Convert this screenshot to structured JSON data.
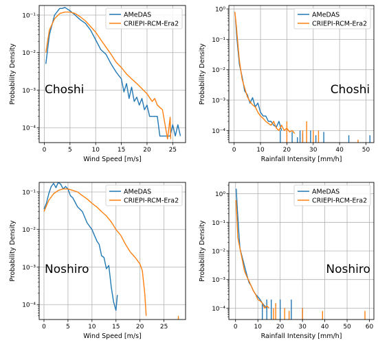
{
  "colors": {
    "amedas": "#1f77b4",
    "criepi": "#ff7f0e",
    "grid": "#b0b0b0"
  },
  "chart_data": [
    {
      "type": "line",
      "scale": "log-y",
      "annotation": "Choshi",
      "xlabel": "Wind Speed [m/s]",
      "ylabel": "Probability Density",
      "xlim": [
        -1,
        27.5
      ],
      "ylim": [
        4e-05,
        0.18
      ],
      "xticks": [
        0,
        5,
        10,
        15,
        20,
        25
      ],
      "yticks": [
        0.0001,
        0.001,
        0.01,
        0.1
      ],
      "ytick_labels": [
        "10⁻⁴",
        "10⁻³",
        "10⁻²",
        "10⁻¹"
      ],
      "grid": true,
      "legend_position": "top-right",
      "series": [
        {
          "name": "AMeDAS",
          "color": "#1f77b4",
          "x": [
            0.3,
            1,
            2,
            3,
            3.5,
            4,
            5,
            6,
            7,
            8,
            9,
            10,
            11,
            12,
            13,
            14,
            15,
            15.5,
            16,
            16.5,
            17,
            17.5,
            18,
            18.5,
            19,
            19.5,
            20,
            20.5,
            21,
            21.5,
            22,
            22.5,
            23,
            23.5,
            24,
            24.5,
            25,
            25.5,
            26,
            26.5
          ],
          "y": [
            0.005,
            0.03,
            0.1,
            0.15,
            0.15,
            0.16,
            0.13,
            0.1,
            0.075,
            0.06,
            0.04,
            0.022,
            0.012,
            0.009,
            0.005,
            0.003,
            0.002,
            0.0009,
            0.0015,
            0.0006,
            0.0012,
            0.0005,
            0.00065,
            0.0004,
            0.0006,
            0.0003,
            0.0004,
            0.0002,
            0.0002,
            0.0002,
            0.0002,
            6e-05,
            6e-05,
            6e-05,
            6e-05,
            6e-05,
            0.00012,
            6e-05,
            0.00012,
            6e-05
          ]
        },
        {
          "name": "CRIEPI-RCM-Era2",
          "color": "#ff7f0e",
          "x": [
            0.3,
            1,
            2,
            3,
            4,
            5,
            6,
            7,
            8,
            9,
            10,
            11,
            12,
            13,
            14,
            15,
            16,
            17,
            18,
            19,
            20,
            21,
            21.5,
            22,
            23,
            24,
            24.5,
            24.6
          ],
          "y": [
            0.01,
            0.04,
            0.08,
            0.11,
            0.12,
            0.12,
            0.11,
            0.09,
            0.07,
            0.05,
            0.035,
            0.022,
            0.014,
            0.009,
            0.0055,
            0.004,
            0.0027,
            0.002,
            0.0015,
            0.0011,
            0.0008,
            0.0005,
            0.0006,
            0.0004,
            0.0003,
            5e-05,
            0.00019,
            5e-05
          ]
        }
      ]
    },
    {
      "type": "line",
      "scale": "log-y",
      "annotation": "Choshi",
      "xlabel": "Rainfall Intensity [mm/h]",
      "ylabel": "Probability Density",
      "xlim": [
        -2,
        53
      ],
      "ylim": [
        4e-05,
        1.3
      ],
      "xticks": [
        0,
        10,
        20,
        30,
        40,
        50
      ],
      "yticks": [
        0.0001,
        0.001,
        0.01,
        0.1,
        1
      ],
      "ytick_labels": [
        "10⁻⁴",
        "10⁻³",
        "10⁻²",
        "10⁻¹",
        "10⁰"
      ],
      "grid": true,
      "legend_position": "top-right",
      "series": [
        {
          "name": "AMeDAS",
          "color": "#1f77b4",
          "x": [
            0.5,
            1,
            2,
            3,
            4,
            5,
            6,
            7,
            8,
            9,
            10,
            11,
            12,
            13,
            14,
            15,
            16,
            17,
            18
          ],
          "y": [
            0.5,
            0.12,
            0.015,
            0.006,
            0.002,
            0.0015,
            0.0008,
            0.0012,
            0.0006,
            0.0008,
            0.0004,
            0.0003,
            0.0003,
            0.0002,
            0.0002,
            0.00015,
            0.00013,
            0.0002,
            0.0001
          ],
          "spikes": [
            [
              17.5,
              0.0001
            ],
            [
              22,
              9e-05
            ],
            [
              24,
              6e-05
            ],
            [
              25,
              0.0001
            ],
            [
              26,
              8e-05
            ],
            [
              29,
              0.0001
            ],
            [
              31,
              7e-05
            ],
            [
              34,
              9e-05
            ],
            [
              43.5,
              7e-05
            ],
            [
              51.5,
              7e-05
            ]
          ]
        },
        {
          "name": "CRIEPI-RCM-Era2",
          "color": "#ff7f0e",
          "x": [
            0.3,
            0.8,
            1.5,
            2,
            3,
            4,
            5,
            6,
            7,
            8,
            9,
            10,
            11,
            12,
            13,
            14,
            15,
            16,
            17,
            18,
            19,
            20,
            21,
            22,
            23
          ],
          "y": [
            0.8,
            0.3,
            0.06,
            0.02,
            0.005,
            0.0025,
            0.0013,
            0.0009,
            0.0007,
            0.0006,
            0.0004,
            0.0003,
            0.00025,
            0.0002,
            0.00017,
            0.00015,
            0.0002,
            0.00012,
            0.0001,
            0.00015,
            0.0001,
            0.00012,
            9e-05,
            0.0001,
            8e-05
          ],
          "spikes": [
            [
              20,
              0.0002
            ],
            [
              26,
              0.0001
            ],
            [
              27.5,
              0.0002
            ],
            [
              30,
              0.0001
            ],
            [
              32,
              0.0001
            ],
            [
              47,
              5e-05
            ]
          ]
        }
      ]
    },
    {
      "type": "line",
      "scale": "log-y",
      "annotation": "Noshiro",
      "xlabel": "Wind Speed [m/s]",
      "ylabel": "Probability Density",
      "xlim": [
        -1,
        29.5
      ],
      "ylim": [
        4e-05,
        0.18
      ],
      "xticks": [
        0,
        5,
        10,
        15,
        20,
        25
      ],
      "yticks": [
        0.0001,
        0.001,
        0.01,
        0.1
      ],
      "ytick_labels": [
        "10⁻⁴",
        "10⁻³",
        "10⁻²",
        "10⁻¹"
      ],
      "grid": true,
      "legend_position": "top-right",
      "series": [
        {
          "name": "AMeDAS",
          "color": "#1f77b4",
          "x": [
            0,
            0.5,
            1,
            1.5,
            2,
            2.5,
            3,
            3.5,
            4,
            4.5,
            5,
            5.5,
            6,
            7,
            8,
            9,
            10,
            11,
            11.5,
            12,
            12.5,
            13,
            13.5,
            14,
            14.5,
            15,
            15.3
          ],
          "y": [
            0.035,
            0.05,
            0.09,
            0.14,
            0.17,
            0.13,
            0.18,
            0.16,
            0.12,
            0.14,
            0.12,
            0.08,
            0.07,
            0.04,
            0.03,
            0.015,
            0.01,
            0.005,
            0.004,
            0.002,
            0.0018,
            0.0009,
            0.0011,
            0.0003,
            0.00012,
            7e-05,
            0.00018
          ]
        },
        {
          "name": "CRIEPI-RCM-Era2",
          "color": "#ff7f0e",
          "x": [
            0,
            1,
            2,
            3,
            4,
            5,
            6,
            7,
            8,
            9,
            10,
            11,
            12,
            13,
            14,
            15,
            16,
            17,
            18,
            19,
            20,
            20.5,
            21,
            21.3
          ],
          "y": [
            0.03,
            0.06,
            0.09,
            0.11,
            0.12,
            0.12,
            0.11,
            0.1,
            0.08,
            0.065,
            0.05,
            0.04,
            0.03,
            0.023,
            0.016,
            0.01,
            0.007,
            0.004,
            0.0025,
            0.0018,
            0.0012,
            0.0008,
            0.0002,
            5e-05
          ],
          "spikes": [
            [
              28,
              5e-05
            ]
          ]
        }
      ]
    },
    {
      "type": "line",
      "scale": "log-y",
      "annotation": "Noshiro",
      "xlabel": "Rainfall Intensity [mm/h]",
      "ylabel": "Probability Density",
      "xlim": [
        -3,
        62
      ],
      "ylim": [
        4e-05,
        2.5
      ],
      "xticks": [
        0,
        10,
        20,
        30,
        40,
        50,
        60
      ],
      "yticks": [
        0.0001,
        0.001,
        0.01,
        0.1,
        1
      ],
      "ytick_labels": [
        "10⁻⁴",
        "10⁻³",
        "10⁻²",
        "10⁻¹",
        "10⁰"
      ],
      "grid": true,
      "legend_position": "top-right",
      "series": [
        {
          "name": "AMeDAS",
          "color": "#1f77b4",
          "x": [
            0.3,
            0.8,
            1.5,
            2,
            3,
            4,
            5,
            6,
            7,
            8,
            9,
            10,
            11,
            12,
            13,
            14
          ],
          "y": [
            1.5,
            0.3,
            0.04,
            0.012,
            0.006,
            0.003,
            0.0015,
            0.0008,
            0.0006,
            0.0004,
            0.0003,
            0.00025,
            0.0002,
            0.00015,
            0.00012,
            0.0001
          ],
          "spikes": [
            [
              12,
              0.00015
            ],
            [
              14,
              0.0002
            ],
            [
              16,
              0.0002
            ],
            [
              20,
              0.0002
            ],
            [
              25,
              0.0002
            ],
            [
              30,
              0.0001
            ]
          ]
        },
        {
          "name": "CRIEPI-RCM-Era2",
          "color": "#ff7f0e",
          "x": [
            0.2,
            0.6,
            1,
            2,
            3,
            4,
            5,
            6,
            7,
            8,
            9,
            10,
            11,
            12,
            13,
            14,
            15
          ],
          "y": [
            0.6,
            0.15,
            0.03,
            0.012,
            0.005,
            0.002,
            0.0013,
            0.0009,
            0.0006,
            0.0004,
            0.0003,
            0.0002,
            0.00018,
            0.00015,
            0.0001,
            0.00012,
            0.0001
          ],
          "spikes": [
            [
              17,
              0.0001
            ],
            [
              18,
              0.00015
            ],
            [
              22,
              0.0001
            ],
            [
              24,
              8e-05
            ],
            [
              30,
              0.0001
            ],
            [
              39,
              8e-05
            ],
            [
              58,
              8e-05
            ]
          ]
        }
      ]
    }
  ]
}
